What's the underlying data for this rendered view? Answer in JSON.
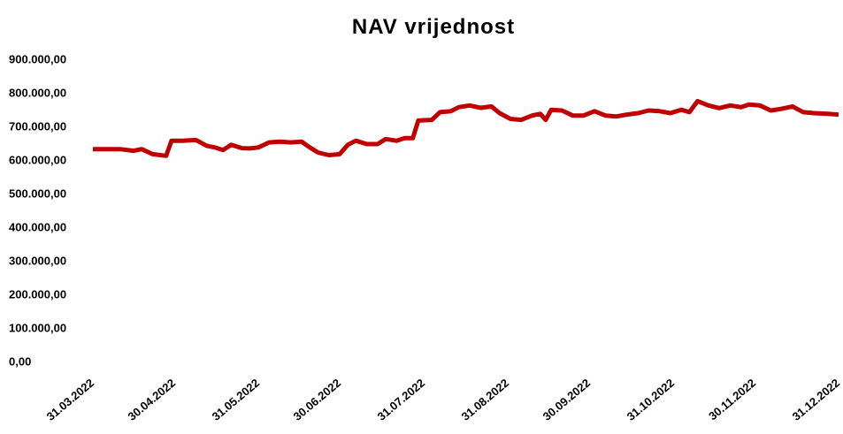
{
  "chart_data": {
    "type": "line",
    "title": "NAV vrijednost",
    "x": [
      "31.03.2022",
      "05.04.2022",
      "10.04.2022",
      "15.04.2022",
      "18.04.2022",
      "22.04.2022",
      "27.04.2022",
      "29.04.2022",
      "03.05.2022",
      "08.05.2022",
      "12.05.2022",
      "15.05.2022",
      "18.05.2022",
      "21.05.2022",
      "25.05.2022",
      "28.05.2022",
      "31.05.2022",
      "04.06.2022",
      "08.06.2022",
      "12.06.2022",
      "16.06.2022",
      "19.06.2022",
      "22.06.2022",
      "26.06.2022",
      "30.06.2022",
      "03.07.2022",
      "06.07.2022",
      "10.07.2022",
      "14.07.2022",
      "17.07.2022",
      "21.07.2022",
      "24.07.2022",
      "27.07.2022",
      "29.07.2022",
      "03.08.2022",
      "06.08.2022",
      "10.08.2022",
      "13.08.2022",
      "17.08.2022",
      "21.08.2022",
      "25.08.2022",
      "28.08.2022",
      "01.09.2022",
      "05.09.2022",
      "09.09.2022",
      "12.09.2022",
      "14.09.2022",
      "16.09.2022",
      "20.09.2022",
      "24.09.2022",
      "28.09.2022",
      "02.10.2022",
      "06.10.2022",
      "10.10.2022",
      "14.10.2022",
      "18.10.2022",
      "22.10.2022",
      "26.10.2022",
      "30.10.2022",
      "03.11.2022",
      "06.11.2022",
      "09.11.2022",
      "13.11.2022",
      "17.11.2022",
      "21.11.2022",
      "25.11.2022",
      "28.11.2022",
      "02.12.2022",
      "06.12.2022",
      "10.12.2022",
      "14.12.2022",
      "18.12.2022",
      "22.12.2022",
      "27.12.2022",
      "31.12.2022"
    ],
    "series": [
      {
        "name": "NAV",
        "color": "#c00000",
        "values": [
          635000,
          635000,
          635000,
          630000,
          635000,
          620000,
          615000,
          660000,
          660000,
          662000,
          645000,
          640000,
          632000,
          648000,
          638000,
          637000,
          640000,
          655000,
          657000,
          655000,
          657000,
          640000,
          625000,
          617000,
          620000,
          648000,
          660000,
          650000,
          650000,
          665000,
          660000,
          668000,
          668000,
          720000,
          722000,
          745000,
          748000,
          760000,
          765000,
          758000,
          762000,
          742000,
          725000,
          722000,
          735000,
          740000,
          722000,
          752000,
          750000,
          735000,
          735000,
          748000,
          735000,
          732000,
          738000,
          742000,
          750000,
          748000,
          742000,
          752000,
          745000,
          778000,
          765000,
          757000,
          765000,
          760000,
          768000,
          765000,
          750000,
          755000,
          762000,
          745000,
          742000,
          740000,
          738000
        ]
      }
    ],
    "xlim": [
      "31.03.2022",
      "31.12.2022"
    ],
    "xticks": [
      "31.03.2022",
      "30.04.2022",
      "31.05.2022",
      "30.06.2022",
      "31.07.2022",
      "31.08.2022",
      "30.09.2022",
      "31.10.2022",
      "30.11.2022",
      "31.12.2022"
    ],
    "ylim": [
      0,
      900000
    ],
    "yticks": [
      {
        "value": 0,
        "label": "0,00"
      },
      {
        "value": 100000,
        "label": "100.000,00"
      },
      {
        "value": 200000,
        "label": "200.000,00"
      },
      {
        "value": 300000,
        "label": "300.000,00"
      },
      {
        "value": 400000,
        "label": "400.000,00"
      },
      {
        "value": 500000,
        "label": "500.000,00"
      },
      {
        "value": 600000,
        "label": "600.000,00"
      },
      {
        "value": 700000,
        "label": "700.000,00"
      },
      {
        "value": 800000,
        "label": "800.000,00"
      },
      {
        "value": 900000,
        "label": "900.000,00"
      }
    ],
    "grid": false
  }
}
